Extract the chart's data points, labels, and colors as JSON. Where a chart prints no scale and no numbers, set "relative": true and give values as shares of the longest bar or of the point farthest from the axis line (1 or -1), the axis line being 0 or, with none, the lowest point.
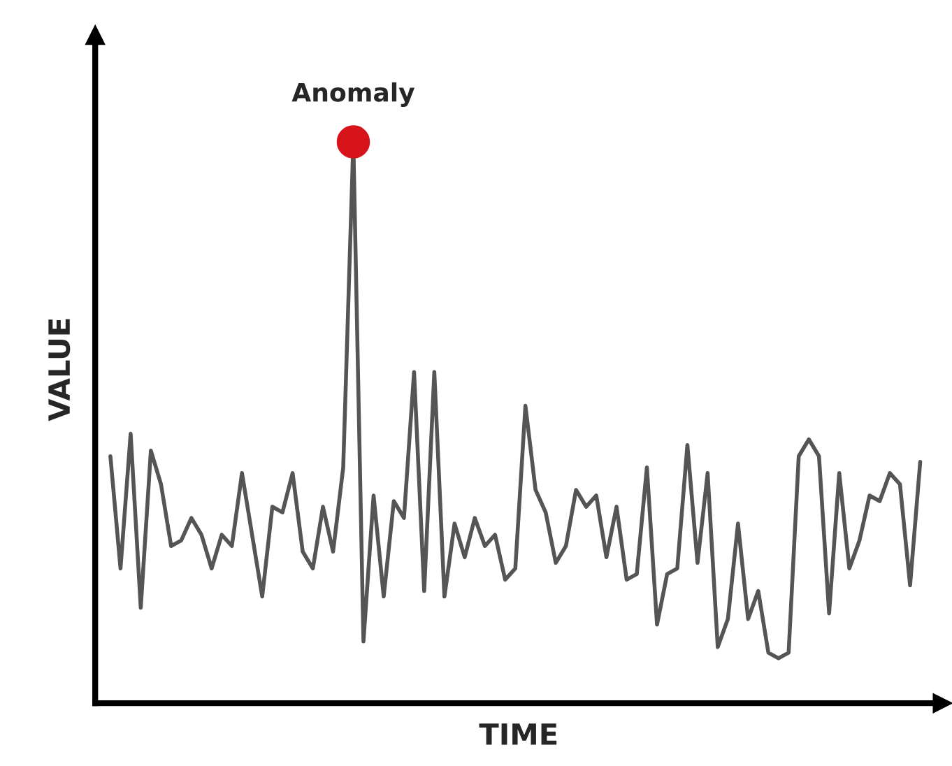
{
  "chart_data": {
    "type": "line",
    "relative": true,
    "xlabel": "TIME",
    "ylabel": "VALUE",
    "legend": false,
    "marker": "none",
    "line_style": "solid",
    "annotations": [
      {
        "text": "Anomaly",
        "y": 1
      }
    ],
    "categories": [
      null,
      null,
      null,
      null,
      null,
      null,
      null,
      null,
      null,
      null,
      null,
      null,
      null,
      null,
      null,
      null,
      null,
      null,
      null,
      null,
      null,
      null,
      null,
      null,
      null,
      null,
      null,
      null,
      null,
      null,
      null,
      null,
      null,
      null,
      null,
      null,
      null,
      null,
      null,
      null,
      null,
      null,
      null,
      null,
      null,
      null,
      null,
      null,
      null,
      null,
      null,
      null,
      null,
      null,
      null,
      null,
      null,
      null,
      null,
      null,
      null,
      null,
      null,
      null,
      null,
      null,
      null,
      null,
      null,
      null,
      null,
      null,
      null,
      null,
      null,
      null,
      null,
      null,
      null,
      null,
      null
    ],
    "series": [
      {
        "type": "line",
        "color": "#555555",
        "values": [
          0.44,
          0.24,
          0.48,
          0.17,
          0.45,
          0.39,
          0.28,
          0.29,
          0.33,
          0.3,
          0.24,
          0.3,
          0.28,
          0.41,
          0.3,
          0.19,
          0.35,
          0.34,
          0.41,
          0.27,
          0.24,
          0.35,
          0.27,
          0.42,
          1,
          0.11,
          0.37,
          0.19,
          0.36,
          0.33,
          0.59,
          0.2,
          0.59,
          0.19,
          0.32,
          0.26,
          0.33,
          0.28,
          0.3,
          0.22,
          0.24,
          0.53,
          0.38,
          0.34,
          0.25,
          0.28,
          0.38,
          0.35,
          0.37,
          0.26,
          0.35,
          0.22,
          0.23,
          0.42,
          0.14,
          0.23,
          0.24,
          0.46,
          0.25,
          0.41,
          0.1,
          0.15,
          0.32,
          0.15,
          0.2,
          0.09,
          0.08,
          0.09,
          0.44,
          0.47,
          0.44,
          0.16,
          0.41,
          0.24,
          0.29,
          0.37,
          0.36,
          0.41,
          0.39,
          0.21,
          0.43
        ]
      }
    ]
  }
}
